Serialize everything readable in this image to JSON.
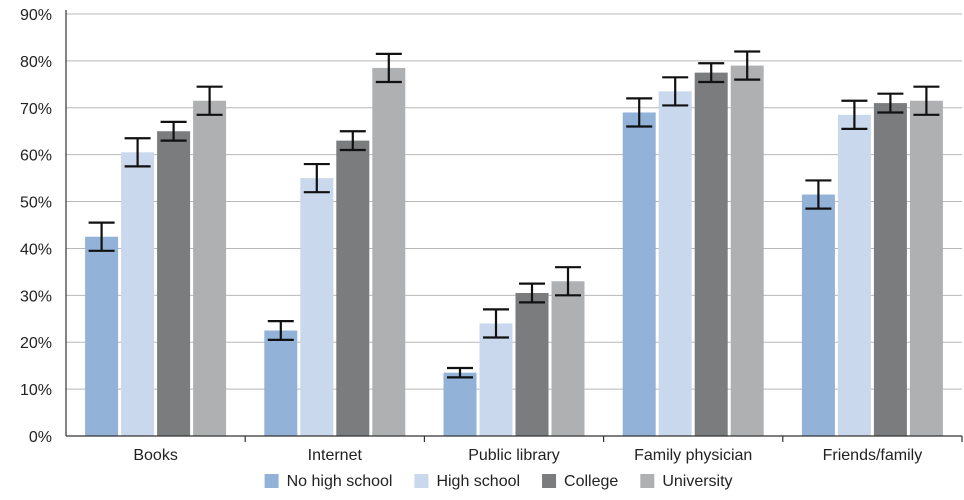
{
  "chart_data": {
    "type": "bar",
    "title": "",
    "xlabel": "",
    "ylabel": "",
    "ylim": [
      0,
      90
    ],
    "yticks": [
      0,
      10,
      20,
      30,
      40,
      50,
      60,
      70,
      80,
      90
    ],
    "ytick_labels": [
      "0%",
      "10%",
      "20%",
      "30%",
      "40%",
      "50%",
      "60%",
      "70%",
      "80%",
      "90%"
    ],
    "grid": true,
    "legend_position": "bottom",
    "categories": [
      "Books",
      "Internet",
      "Public library",
      "Family physician",
      "Friends/family"
    ],
    "series": [
      {
        "name": "No high school",
        "color": "#93b2d7",
        "values": [
          42.5,
          22.5,
          13.5,
          69,
          51.5
        ],
        "err_low": [
          39.5,
          20.5,
          12.5,
          66,
          48.5
        ],
        "err_high": [
          45.5,
          24.5,
          14.5,
          72,
          54.5
        ]
      },
      {
        "name": "High school",
        "color": "#c9d8ec",
        "values": [
          60.5,
          55,
          24,
          73.5,
          68.5
        ],
        "err_low": [
          57.5,
          52,
          21,
          70.5,
          65.5
        ],
        "err_high": [
          63.5,
          58,
          27,
          76.5,
          71.5
        ]
      },
      {
        "name": "College",
        "color": "#7a7c7e",
        "values": [
          65,
          63,
          30.5,
          77.5,
          71
        ],
        "err_low": [
          63,
          61,
          28.5,
          75.5,
          69
        ],
        "err_high": [
          67,
          65,
          32.5,
          79.5,
          73
        ]
      },
      {
        "name": "University",
        "color": "#afb0b2",
        "values": [
          71.5,
          78.5,
          33,
          79,
          71.5
        ],
        "err_low": [
          68.5,
          75.5,
          30,
          76,
          68.5
        ],
        "err_high": [
          74.5,
          81.5,
          36,
          82,
          74.5
        ]
      }
    ]
  }
}
